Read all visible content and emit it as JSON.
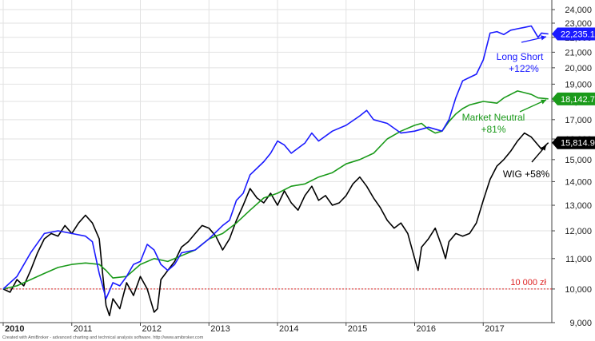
{
  "chart_data": {
    "type": "line",
    "x_labels": [
      "2010",
      "2011",
      "2012",
      "2013",
      "2014",
      "2015",
      "2016",
      "2017"
    ],
    "x_range": [
      2010.0,
      2018.0
    ],
    "y_ticks": [
      "9,000",
      "10,000",
      "11,000",
      "12,000",
      "13,000",
      "14,000",
      "15,000",
      "16,000",
      "17,000",
      "18,000",
      "19,000",
      "20,000",
      "21,000",
      "22,000",
      "23,000",
      "24,000"
    ],
    "ylim": [
      9000,
      24000
    ],
    "y_scale": "log",
    "grid": true,
    "reference_line": {
      "value": 10000,
      "label": "10 000 zł",
      "color": "#dd2222"
    },
    "series": [
      {
        "name": "Long Short",
        "color": "#1a1aff",
        "last_value_label": "22,235.1",
        "annotation": [
          "Long Short",
          "+122%"
        ],
        "points": [
          [
            2010.0,
            10000
          ],
          [
            2010.2,
            10400
          ],
          [
            2010.4,
            11200
          ],
          [
            2010.6,
            11900
          ],
          [
            2010.8,
            12000
          ],
          [
            2011.0,
            11900
          ],
          [
            2011.2,
            11800
          ],
          [
            2011.3,
            11600
          ],
          [
            2011.4,
            10500
          ],
          [
            2011.5,
            9700
          ],
          [
            2011.6,
            10200
          ],
          [
            2011.7,
            10100
          ],
          [
            2011.8,
            10400
          ],
          [
            2011.9,
            10800
          ],
          [
            2012.0,
            10900
          ],
          [
            2012.1,
            11500
          ],
          [
            2012.2,
            11300
          ],
          [
            2012.3,
            10800
          ],
          [
            2012.4,
            10600
          ],
          [
            2012.5,
            10800
          ],
          [
            2012.6,
            11200
          ],
          [
            2012.8,
            11300
          ],
          [
            2013.0,
            11700
          ],
          [
            2013.2,
            12200
          ],
          [
            2013.3,
            12400
          ],
          [
            2013.4,
            13200
          ],
          [
            2013.5,
            13500
          ],
          [
            2013.6,
            14300
          ],
          [
            2013.8,
            14900
          ],
          [
            2013.9,
            15300
          ],
          [
            2014.0,
            15900
          ],
          [
            2014.1,
            15700
          ],
          [
            2014.2,
            15300
          ],
          [
            2014.4,
            15800
          ],
          [
            2014.5,
            16300
          ],
          [
            2014.6,
            15900
          ],
          [
            2014.8,
            16400
          ],
          [
            2015.0,
            16700
          ],
          [
            2015.2,
            17200
          ],
          [
            2015.3,
            17500
          ],
          [
            2015.4,
            17000
          ],
          [
            2015.6,
            16800
          ],
          [
            2015.8,
            16300
          ],
          [
            2016.0,
            16400
          ],
          [
            2016.2,
            16600
          ],
          [
            2016.4,
            16400
          ],
          [
            2016.5,
            17000
          ],
          [
            2016.6,
            18200
          ],
          [
            2016.7,
            19200
          ],
          [
            2016.8,
            19400
          ],
          [
            2016.9,
            19600
          ],
          [
            2017.0,
            20500
          ],
          [
            2017.1,
            22300
          ],
          [
            2017.2,
            22400
          ],
          [
            2017.3,
            22200
          ],
          [
            2017.4,
            22500
          ],
          [
            2017.5,
            22600
          ],
          [
            2017.6,
            22700
          ],
          [
            2017.7,
            22800
          ],
          [
            2017.75,
            22400
          ],
          [
            2017.8,
            22000
          ],
          [
            2017.85,
            22300
          ],
          [
            2017.95,
            22235
          ]
        ]
      },
      {
        "name": "Market Neutral",
        "color": "#1a9a1a",
        "last_value_label": "18,142.7",
        "annotation": [
          "Market Neutral",
          "+81%"
        ],
        "points": [
          [
            2010.0,
            10000
          ],
          [
            2010.2,
            10100
          ],
          [
            2010.4,
            10300
          ],
          [
            2010.6,
            10500
          ],
          [
            2010.8,
            10700
          ],
          [
            2011.0,
            10800
          ],
          [
            2011.2,
            10850
          ],
          [
            2011.4,
            10800
          ],
          [
            2011.5,
            10600
          ],
          [
            2011.6,
            10350
          ],
          [
            2011.8,
            10400
          ],
          [
            2012.0,
            10800
          ],
          [
            2012.2,
            11000
          ],
          [
            2012.4,
            10900
          ],
          [
            2012.6,
            11100
          ],
          [
            2012.8,
            11300
          ],
          [
            2013.0,
            11700
          ],
          [
            2013.2,
            11900
          ],
          [
            2013.4,
            12300
          ],
          [
            2013.6,
            12800
          ],
          [
            2013.8,
            13300
          ],
          [
            2014.0,
            13500
          ],
          [
            2014.2,
            13800
          ],
          [
            2014.4,
            13900
          ],
          [
            2014.6,
            14200
          ],
          [
            2014.8,
            14400
          ],
          [
            2015.0,
            14800
          ],
          [
            2015.2,
            15000
          ],
          [
            2015.4,
            15300
          ],
          [
            2015.6,
            16000
          ],
          [
            2015.8,
            16400
          ],
          [
            2016.0,
            16700
          ],
          [
            2016.1,
            16800
          ],
          [
            2016.2,
            16500
          ],
          [
            2016.3,
            16300
          ],
          [
            2016.4,
            16400
          ],
          [
            2016.5,
            16900
          ],
          [
            2016.6,
            17300
          ],
          [
            2016.7,
            17600
          ],
          [
            2016.8,
            17800
          ],
          [
            2016.9,
            17900
          ],
          [
            2017.0,
            18000
          ],
          [
            2017.2,
            17900
          ],
          [
            2017.3,
            18200
          ],
          [
            2017.4,
            18400
          ],
          [
            2017.5,
            18600
          ],
          [
            2017.6,
            18500
          ],
          [
            2017.7,
            18400
          ],
          [
            2017.8,
            18200
          ],
          [
            2017.95,
            18143
          ]
        ]
      },
      {
        "name": "WIG",
        "color": "#000000",
        "last_value_label": "15,814.9",
        "annotation": [
          "WIG +58%"
        ],
        "points": [
          [
            2010.0,
            10000
          ],
          [
            2010.1,
            9900
          ],
          [
            2010.2,
            10300
          ],
          [
            2010.3,
            10100
          ],
          [
            2010.4,
            10600
          ],
          [
            2010.5,
            11200
          ],
          [
            2010.6,
            11700
          ],
          [
            2010.7,
            11900
          ],
          [
            2010.8,
            11800
          ],
          [
            2010.9,
            12200
          ],
          [
            2011.0,
            11900
          ],
          [
            2011.1,
            12300
          ],
          [
            2011.2,
            12600
          ],
          [
            2011.3,
            12300
          ],
          [
            2011.4,
            11700
          ],
          [
            2011.45,
            10500
          ],
          [
            2011.5,
            9500
          ],
          [
            2011.55,
            9200
          ],
          [
            2011.6,
            9700
          ],
          [
            2011.7,
            9400
          ],
          [
            2011.8,
            10200
          ],
          [
            2011.9,
            9800
          ],
          [
            2012.0,
            10400
          ],
          [
            2012.1,
            10000
          ],
          [
            2012.2,
            9300
          ],
          [
            2012.25,
            9400
          ],
          [
            2012.3,
            10300
          ],
          [
            2012.4,
            10600
          ],
          [
            2012.5,
            10900
          ],
          [
            2012.6,
            11400
          ],
          [
            2012.7,
            11600
          ],
          [
            2012.8,
            11900
          ],
          [
            2012.9,
            12200
          ],
          [
            2013.0,
            12100
          ],
          [
            2013.1,
            11800
          ],
          [
            2013.2,
            11300
          ],
          [
            2013.3,
            11700
          ],
          [
            2013.4,
            12400
          ],
          [
            2013.5,
            13000
          ],
          [
            2013.6,
            13700
          ],
          [
            2013.7,
            13300
          ],
          [
            2013.8,
            13100
          ],
          [
            2013.9,
            13500
          ],
          [
            2014.0,
            13000
          ],
          [
            2014.1,
            13600
          ],
          [
            2014.2,
            13100
          ],
          [
            2014.3,
            12800
          ],
          [
            2014.4,
            13400
          ],
          [
            2014.5,
            13800
          ],
          [
            2014.6,
            13200
          ],
          [
            2014.7,
            13400
          ],
          [
            2014.8,
            13000
          ],
          [
            2014.9,
            13100
          ],
          [
            2015.0,
            13400
          ],
          [
            2015.1,
            13900
          ],
          [
            2015.2,
            14200
          ],
          [
            2015.3,
            13800
          ],
          [
            2015.4,
            13300
          ],
          [
            2015.5,
            12900
          ],
          [
            2015.6,
            12400
          ],
          [
            2015.7,
            12100
          ],
          [
            2015.8,
            12300
          ],
          [
            2015.9,
            11900
          ],
          [
            2016.0,
            11000
          ],
          [
            2016.05,
            10600
          ],
          [
            2016.1,
            11400
          ],
          [
            2016.2,
            11700
          ],
          [
            2016.3,
            12100
          ],
          [
            2016.4,
            11400
          ],
          [
            2016.45,
            11000
          ],
          [
            2016.5,
            11600
          ],
          [
            2016.6,
            11900
          ],
          [
            2016.7,
            11800
          ],
          [
            2016.8,
            11900
          ],
          [
            2016.9,
            12300
          ],
          [
            2017.0,
            13200
          ],
          [
            2017.1,
            14100
          ],
          [
            2017.2,
            14700
          ],
          [
            2017.3,
            15000
          ],
          [
            2017.4,
            15400
          ],
          [
            2017.5,
            15900
          ],
          [
            2017.6,
            16300
          ],
          [
            2017.7,
            16100
          ],
          [
            2017.8,
            15700
          ],
          [
            2017.85,
            15500
          ],
          [
            2017.95,
            15815
          ]
        ]
      }
    ]
  },
  "footer": {
    "credit": "Created with AmiBroker - advanced charting and technical analysis software. http://www.amibroker.com"
  }
}
